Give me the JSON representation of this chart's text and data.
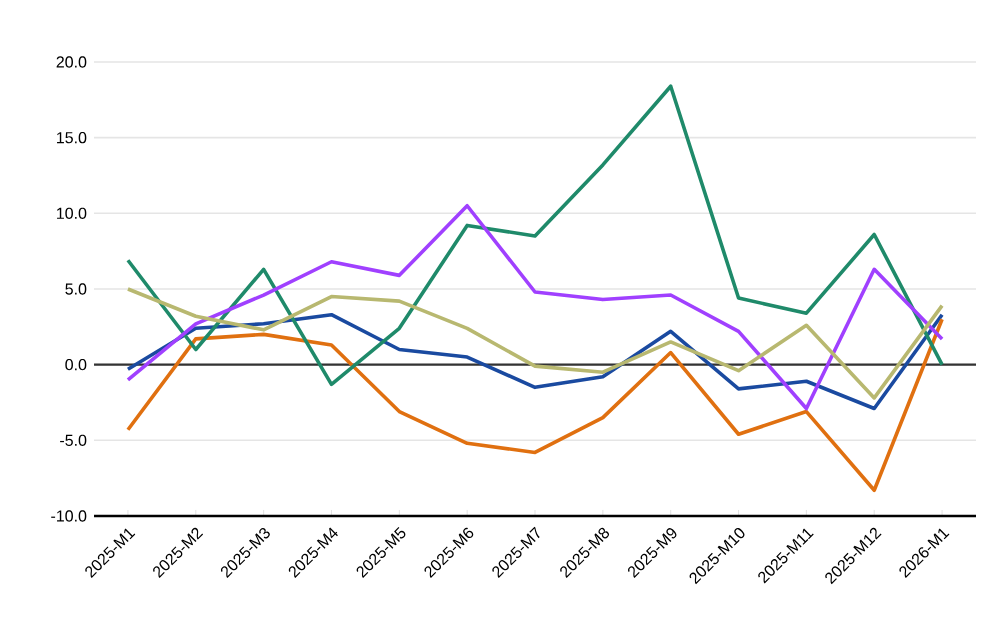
{
  "chart_data": {
    "type": "line",
    "categories": [
      "2025-M1",
      "2025-M2",
      "2025-M3",
      "2025-M4",
      "2025-M5",
      "2025-M6",
      "2025-M7",
      "2025-M8",
      "2025-M9",
      "2025-M10",
      "2025-M11",
      "2025-M12",
      "2026-M1"
    ],
    "series": [
      {
        "color": "#1a4aa0",
        "values": [
          -0.3,
          2.4,
          2.7,
          3.3,
          1.0,
          0.5,
          -1.5,
          -0.8,
          2.2,
          -1.6,
          -1.1,
          -2.9,
          3.3
        ]
      },
      {
        "color": "#e07010",
        "values": [
          -4.3,
          1.7,
          2.0,
          1.3,
          -3.1,
          -5.2,
          -5.8,
          -3.5,
          0.8,
          -4.6,
          -3.1,
          -8.3,
          3.0
        ]
      },
      {
        "color": "#1f8a6a",
        "values": [
          6.9,
          1.0,
          6.3,
          -1.3,
          2.4,
          9.2,
          8.5,
          13.2,
          18.4,
          4.4,
          3.4,
          8.6,
          0.0
        ]
      },
      {
        "color": "#a040ff",
        "values": [
          -1.0,
          2.7,
          4.6,
          6.8,
          5.9,
          10.5,
          4.8,
          4.3,
          4.6,
          2.2,
          -2.9,
          6.3,
          1.7
        ]
      },
      {
        "color": "#b8b870",
        "values": [
          5.0,
          3.2,
          2.3,
          4.5,
          4.2,
          2.4,
          -0.1,
          -0.5,
          1.5,
          -0.4,
          2.6,
          -2.2,
          3.9
        ]
      }
    ],
    "ylim": [
      -10,
      20
    ],
    "yticks": [
      {
        "value": -10,
        "label": "-10.0"
      },
      {
        "value": -5,
        "label": "-5.0"
      },
      {
        "value": 0,
        "label": "0.0"
      },
      {
        "value": 5,
        "label": "5.0"
      },
      {
        "value": 10,
        "label": "10.0"
      },
      {
        "value": 15,
        "label": "15.0"
      },
      {
        "value": 20,
        "label": "20.0"
      }
    ],
    "grid": "y",
    "marker": "none",
    "line_style": "solid",
    "ref_lines": [
      {
        "axis": "y",
        "value": 0,
        "color": "#333333"
      }
    ]
  }
}
